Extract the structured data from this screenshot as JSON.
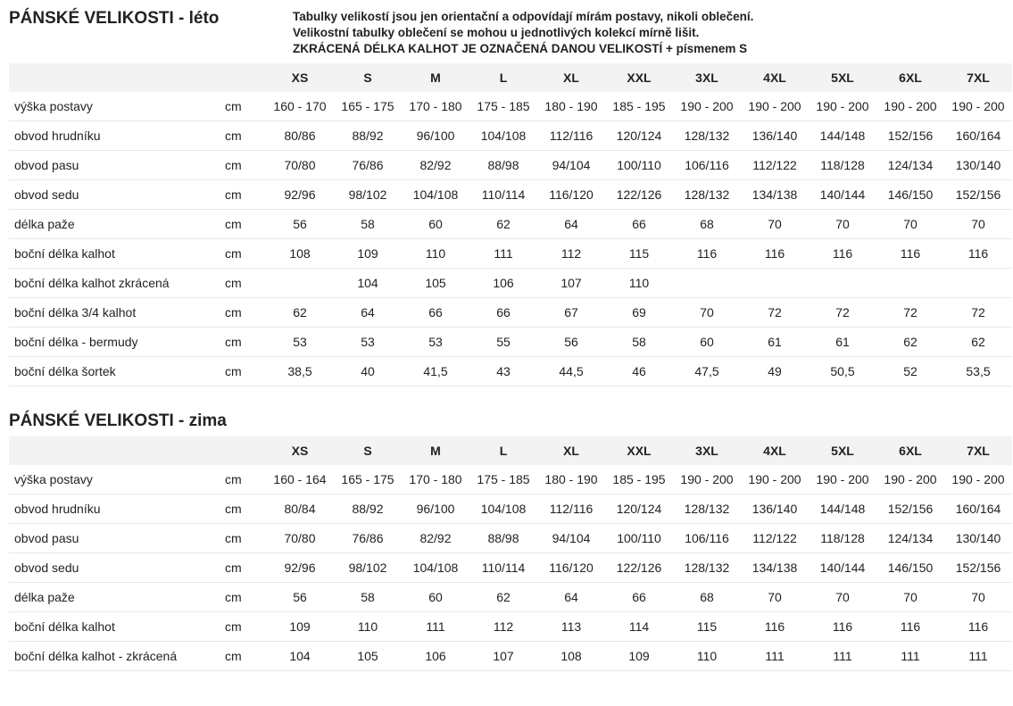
{
  "notes": [
    "Tabulky velikostí jsou jen orientační a odpovídají mírám postavy, nikoli oblečení.",
    "Velikostní tabulky oblečení se mohou u jednotlivých kolekcí mírně lišit.",
    "ZKRÁCENÁ DÉLKA KALHOT JE OZNAČENÁ DANOU VELIKOSTÍ + písmenem S"
  ],
  "sizes": [
    "XS",
    "S",
    "M",
    "L",
    "XL",
    "XXL",
    "3XL",
    "4XL",
    "5XL",
    "6XL",
    "7XL"
  ],
  "tables": [
    {
      "title": "PÁNSKÉ VELIKOSTI - léto",
      "show_notes": true,
      "rows": [
        {
          "label": "výška postavy",
          "unit": "cm",
          "cells": [
            "160 - 170",
            "165 - 175",
            "170 - 180",
            "175 - 185",
            "180 - 190",
            "185 - 195",
            "190 - 200",
            "190 - 200",
            "190 - 200",
            "190 - 200",
            "190 - 200"
          ]
        },
        {
          "label": "obvod hrudníku",
          "unit": "cm",
          "cells": [
            "80/86",
            "88/92",
            "96/100",
            "104/108",
            "112/116",
            "120/124",
            "128/132",
            "136/140",
            "144/148",
            "152/156",
            "160/164"
          ]
        },
        {
          "label": "obvod pasu",
          "unit": "cm",
          "cells": [
            "70/80",
            "76/86",
            "82/92",
            "88/98",
            "94/104",
            "100/110",
            "106/116",
            "112/122",
            "118/128",
            "124/134",
            "130/140"
          ]
        },
        {
          "label": "obvod sedu",
          "unit": "cm",
          "cells": [
            "92/96",
            "98/102",
            "104/108",
            "110/114",
            "116/120",
            "122/126",
            "128/132",
            "134/138",
            "140/144",
            "146/150",
            "152/156"
          ]
        },
        {
          "label": "délka paže",
          "unit": "cm",
          "cells": [
            "56",
            "58",
            "60",
            "62",
            "64",
            "66",
            "68",
            "70",
            "70",
            "70",
            "70"
          ]
        },
        {
          "label": "boční délka kalhot",
          "unit": "cm",
          "cells": [
            "108",
            "109",
            "110",
            "111",
            "112",
            "115",
            "116",
            "116",
            "116",
            "116",
            "116"
          ]
        },
        {
          "label": "boční délka kalhot zkrácená",
          "unit": "cm",
          "cells": [
            "",
            "104",
            "105",
            "106",
            "107",
            "110",
            "",
            "",
            "",
            "",
            ""
          ]
        },
        {
          "label": "boční délka 3/4 kalhot",
          "unit": "cm",
          "cells": [
            "62",
            "64",
            "66",
            "66",
            "67",
            "69",
            "70",
            "72",
            "72",
            "72",
            "72"
          ]
        },
        {
          "label": "boční délka - bermudy",
          "unit": "cm",
          "cells": [
            "53",
            "53",
            "53",
            "55",
            "56",
            "58",
            "60",
            "61",
            "61",
            "62",
            "62"
          ]
        },
        {
          "label": "boční délka šortek",
          "unit": "cm",
          "cells": [
            "38,5",
            "40",
            "41,5",
            "43",
            "44,5",
            "46",
            "47,5",
            "49",
            "50,5",
            "52",
            "53,5"
          ]
        }
      ]
    },
    {
      "title": "PÁNSKÉ VELIKOSTI - zima",
      "show_notes": false,
      "rows": [
        {
          "label": "výška postavy",
          "unit": "cm",
          "cells": [
            "160 - 164",
            "165 - 175",
            "170 - 180",
            "175 - 185",
            "180 - 190",
            "185 - 195",
            "190 - 200",
            "190 - 200",
            "190 - 200",
            "190 - 200",
            "190 - 200"
          ]
        },
        {
          "label": "obvod hrudníku",
          "unit": "cm",
          "cells": [
            "80/84",
            "88/92",
            "96/100",
            "104/108",
            "112/116",
            "120/124",
            "128/132",
            "136/140",
            "144/148",
            "152/156",
            "160/164"
          ]
        },
        {
          "label": "obvod pasu",
          "unit": "cm",
          "cells": [
            "70/80",
            "76/86",
            "82/92",
            "88/98",
            "94/104",
            "100/110",
            "106/116",
            "112/122",
            "118/128",
            "124/134",
            "130/140"
          ]
        },
        {
          "label": "obvod sedu",
          "unit": "cm",
          "cells": [
            "92/96",
            "98/102",
            "104/108",
            "110/114",
            "116/120",
            "122/126",
            "128/132",
            "134/138",
            "140/144",
            "146/150",
            "152/156"
          ]
        },
        {
          "label": "délka paže",
          "unit": "cm",
          "cells": [
            "56",
            "58",
            "60",
            "62",
            "64",
            "66",
            "68",
            "70",
            "70",
            "70",
            "70"
          ]
        },
        {
          "label": "boční délka kalhot",
          "unit": "cm",
          "cells": [
            "109",
            "110",
            "111",
            "112",
            "113",
            "114",
            "115",
            "116",
            "116",
            "116",
            "116"
          ]
        },
        {
          "label": "boční délka kalhot - zkrácená",
          "unit": "cm",
          "cells": [
            "104",
            "105",
            "106",
            "107",
            "108",
            "109",
            "110",
            "111",
            "111",
            "111",
            "111"
          ]
        }
      ]
    }
  ]
}
